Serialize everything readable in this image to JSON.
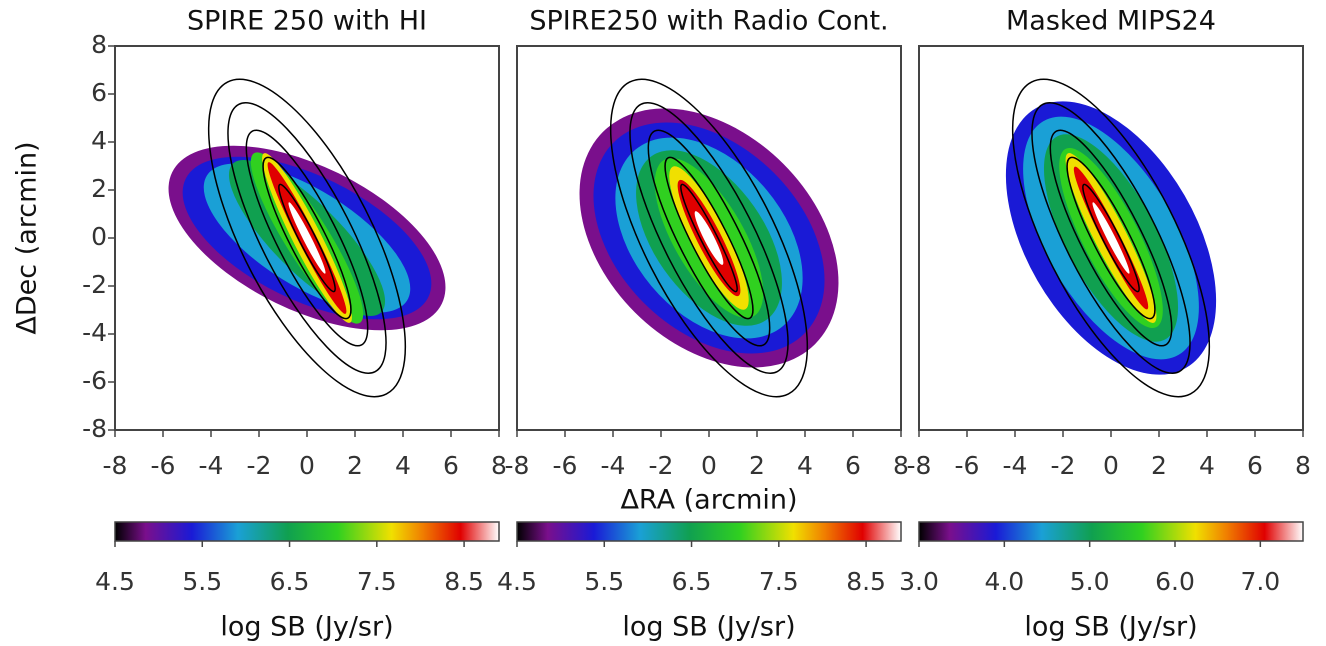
{
  "chart_data": [
    {
      "type": "image",
      "title": "SPIRE 250 with HI",
      "ylabel": "ΔDec (arcmin)",
      "xlim": [
        -8,
        8
      ],
      "xticks": [
        -8,
        -6,
        -4,
        -2,
        0,
        2,
        4,
        6,
        8
      ],
      "ylim": [
        -8,
        8
      ],
      "yticks": [
        -8,
        -6,
        -4,
        -2,
        0,
        2,
        4,
        6,
        8
      ],
      "colorbar": {
        "lim": [
          4.5,
          8.9
        ],
        "ticks": [
          4.5,
          5.5,
          6.5,
          7.5,
          8.5
        ],
        "label": "log SB (Jy/sr)"
      }
    },
    {
      "type": "image",
      "title": "SPIRE250 with Radio Cont.",
      "xlabel": "ΔRA (arcmin)",
      "xlim": [
        -8,
        8
      ],
      "xticks": [
        -8,
        -6,
        -4,
        -2,
        0,
        2,
        4,
        6,
        8
      ],
      "ylim": [
        -8,
        8
      ],
      "colorbar": {
        "lim": [
          4.5,
          8.9
        ],
        "ticks": [
          4.5,
          5.5,
          6.5,
          7.5,
          8.5
        ],
        "label": "log SB (Jy/sr)"
      }
    },
    {
      "type": "image",
      "title": "Masked MIPS24",
      "xlim": [
        -8,
        8
      ],
      "xticks": [
        -8,
        -6,
        -4,
        -2,
        0,
        2,
        4,
        6,
        8
      ],
      "ylim": [
        -8,
        8
      ],
      "colorbar": {
        "lim": [
          3,
          7.5
        ],
        "ticks": [
          {
            "value": 3,
            "label": "3.0"
          },
          {
            "value": 4,
            "label": "4.0"
          },
          {
            "value": 5,
            "label": "5.0"
          },
          {
            "value": 6,
            "label": "6.0"
          },
          {
            "value": 7,
            "label": "7.0"
          }
        ],
        "label": "log SB (Jy/sr)"
      }
    }
  ]
}
